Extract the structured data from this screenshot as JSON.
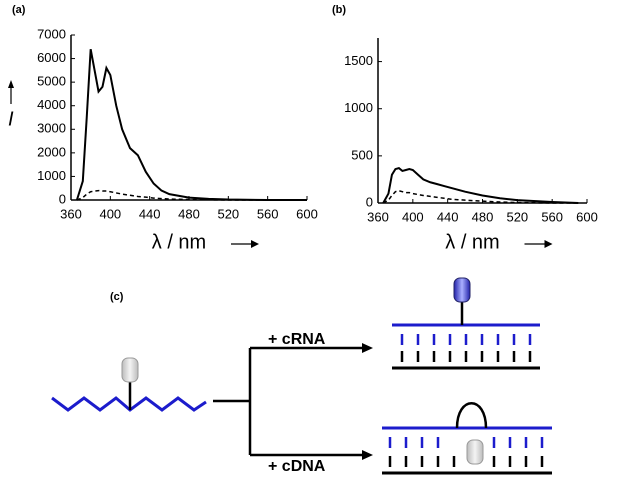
{
  "chart_data": [
    {
      "type": "line",
      "panel_label": "(a)",
      "ylabel": "I",
      "xlabel": "λ / nm",
      "x": [
        366,
        372,
        376,
        380,
        384,
        388,
        392,
        396,
        400,
        406,
        412,
        420,
        428,
        436,
        444,
        452,
        460,
        480,
        500,
        520,
        560,
        600
      ],
      "series": [
        {
          "color": "#000000",
          "line_style": "solid",
          "values": [
            0,
            800,
            3500,
            6400,
            5500,
            4600,
            4800,
            5600,
            5300,
            4000,
            3000,
            2200,
            1900,
            1200,
            700,
            400,
            250,
            100,
            50,
            20,
            0,
            0
          ]
        },
        {
          "color": "#000000",
          "line_style": "dashed",
          "values": [
            0,
            100,
            250,
            350,
            380,
            400,
            380,
            380,
            350,
            300,
            250,
            200,
            150,
            120,
            80,
            60,
            40,
            20,
            10,
            0,
            0,
            0
          ]
        }
      ],
      "xlim": [
        360,
        600
      ],
      "xticks": [
        360,
        400,
        440,
        480,
        520,
        560,
        600
      ],
      "ylim": [
        0,
        7000
      ],
      "yticks": [
        0,
        1000,
        2000,
        3000,
        4000,
        5000,
        6000,
        7000
      ]
    },
    {
      "type": "line",
      "panel_label": "(b)",
      "xlabel": "λ / nm",
      "x": [
        366,
        372,
        376,
        380,
        384,
        388,
        392,
        396,
        400,
        406,
        412,
        420,
        428,
        436,
        444,
        452,
        460,
        480,
        500,
        520,
        560,
        590
      ],
      "series": [
        {
          "color": "#000000",
          "line_style": "solid",
          "values": [
            0,
            100,
            300,
            360,
            370,
            340,
            350,
            360,
            350,
            300,
            250,
            220,
            200,
            180,
            160,
            140,
            120,
            80,
            50,
            30,
            10,
            0
          ]
        },
        {
          "color": "#000000",
          "line_style": "dashed",
          "values": [
            0,
            30,
            80,
            120,
            130,
            120,
            110,
            110,
            100,
            90,
            80,
            70,
            60,
            50,
            40,
            35,
            30,
            20,
            10,
            5,
            0,
            0
          ]
        }
      ],
      "xlim": [
        360,
        600
      ],
      "xticks": [
        360,
        400,
        440,
        480,
        520,
        560,
        600
      ],
      "ylim": [
        0,
        1750
      ],
      "yticks": [
        0,
        500,
        1000,
        1500
      ]
    }
  ],
  "diagram": {
    "panel_label": "(c)",
    "top_label": "+ cRNA",
    "bottom_label": "+ cDNA"
  }
}
